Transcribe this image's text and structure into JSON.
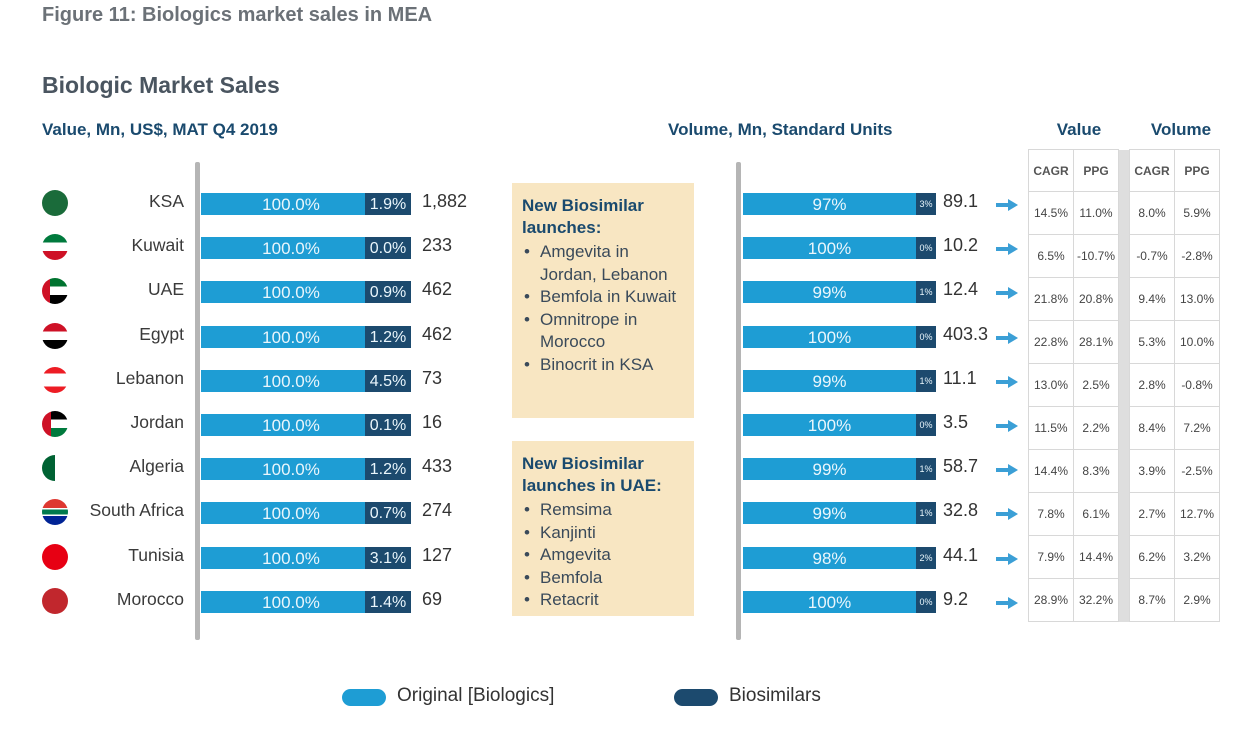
{
  "figure_title": "Figure 11: Biologics market sales in MEA",
  "chart_title": "Biologic Market Sales",
  "left_subtitle": "Value, Mn, US$, MAT Q4 2019",
  "mid_subtitle": "Volume, Mn, Standard Units",
  "table_headers": {
    "value": "Value",
    "volume": "Volume",
    "cagr": "CAGR",
    "ppg": "PPG"
  },
  "colors": {
    "original": "#1e9dd4",
    "biosimilars": "#1c4a6e",
    "arrow": "#3b9fd6",
    "note_bg": "#f8e6c2"
  },
  "notes": [
    {
      "heading": "New Biosimilar launches:",
      "items": [
        "Amgevita in Jordan, Lebanon",
        "Bemfola in Kuwait",
        "Omnitrope in Morocco",
        "Binocrit in KSA"
      ]
    },
    {
      "heading": "New Biosimilar launches in UAE:",
      "items": [
        "Remsima",
        "Kanjinti",
        "Amgevita",
        "Bemfola",
        "Retacrit"
      ]
    }
  ],
  "legend": [
    {
      "label": "Original [Biologics]",
      "color": "#1e9dd4"
    },
    {
      "label": "Biosimilars",
      "color": "#1c4a6e"
    }
  ],
  "chart_data": [
    {
      "type": "bar",
      "stacked": true,
      "orientation": "horizontal",
      "title": "Value, Mn, US$, MAT Q4 2019",
      "categories": [
        "KSA",
        "Kuwait",
        "UAE",
        "Egypt",
        "Lebanon",
        "Jordan",
        "Algeria",
        "South Africa",
        "Tunisia",
        "Morocco"
      ],
      "series": [
        {
          "name": "Original [Biologics]",
          "labels": [
            "100.0%",
            "100.0%",
            "100.0%",
            "100.0%",
            "100.0%",
            "100.0%",
            "100.0%",
            "100.0%",
            "100.0%",
            "100.0%"
          ]
        },
        {
          "name": "Biosimilars",
          "labels": [
            "1.9%",
            "0.0%",
            "0.9%",
            "1.2%",
            "4.5%",
            "0.1%",
            "1.2%",
            "0.7%",
            "3.1%",
            "1.4%"
          ]
        }
      ],
      "totals": [
        "1,882",
        "233",
        "462",
        "462",
        "73",
        "16",
        "433",
        "274",
        "127",
        "69"
      ]
    },
    {
      "type": "bar",
      "stacked": true,
      "orientation": "horizontal",
      "title": "Volume, Mn, Standard Units",
      "categories": [
        "KSA",
        "Kuwait",
        "UAE",
        "Egypt",
        "Lebanon",
        "Jordan",
        "Algeria",
        "South Africa",
        "Tunisia",
        "Morocco"
      ],
      "series": [
        {
          "name": "Original [Biologics]",
          "labels": [
            "97%",
            "100%",
            "99%",
            "100%",
            "99%",
            "100%",
            "99%",
            "99%",
            "98%",
            "100%"
          ]
        },
        {
          "name": "Biosimilars",
          "labels": [
            "3%",
            "0%",
            "1%",
            "0%",
            "1%",
            "0%",
            "1%",
            "1%",
            "2%",
            "0%"
          ]
        }
      ],
      "totals": [
        "89.1",
        "10.2",
        "12.4",
        "403.3",
        "11.1",
        "3.5",
        "58.7",
        "32.8",
        "44.1",
        "9.2"
      ]
    },
    {
      "type": "table",
      "columns": [
        "Value CAGR",
        "Value PPG",
        "Volume CAGR",
        "Volume PPG"
      ],
      "rows": [
        [
          "14.5%",
          "11.0%",
          "8.0%",
          "5.9%"
        ],
        [
          "6.5%",
          "-10.7%",
          "-0.7%",
          "-2.8%"
        ],
        [
          "21.8%",
          "20.8%",
          "9.4%",
          "13.0%"
        ],
        [
          "22.8%",
          "28.1%",
          "5.3%",
          "10.0%"
        ],
        [
          "13.0%",
          "2.5%",
          "2.8%",
          "-0.8%"
        ],
        [
          "11.5%",
          "2.2%",
          "8.4%",
          "7.2%"
        ],
        [
          "14.4%",
          "8.3%",
          "3.9%",
          "-2.5%"
        ],
        [
          "7.8%",
          "6.1%",
          "2.7%",
          "12.7%"
        ],
        [
          "7.9%",
          "14.4%",
          "6.2%",
          "3.2%"
        ],
        [
          "28.9%",
          "32.2%",
          "8.7%",
          "2.9%"
        ]
      ]
    }
  ]
}
